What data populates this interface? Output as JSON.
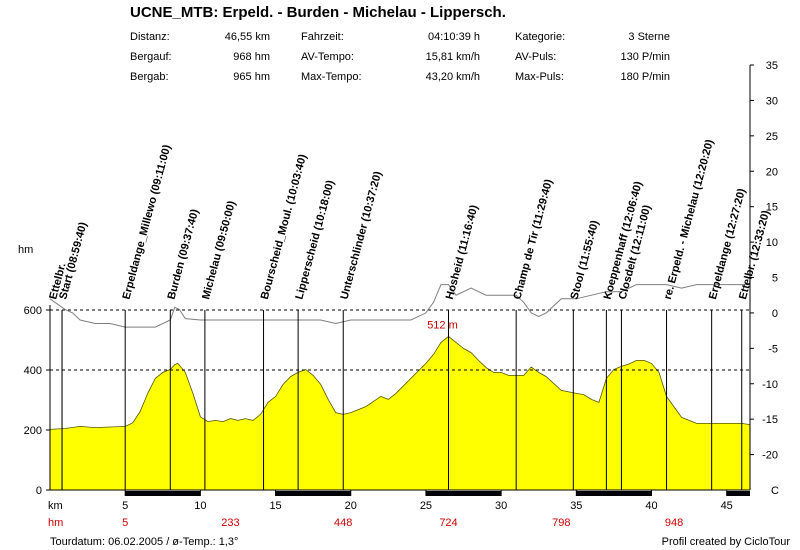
{
  "header": {
    "title": "UCNE_MTB: Erpeld. - Burden - Michelau - Lippersch.",
    "stats": [
      {
        "label": "Distanz:",
        "value": "46,55 km"
      },
      {
        "label": "Bergauf:",
        "value": "968 hm"
      },
      {
        "label": "Bergab:",
        "value": "965 hm"
      },
      {
        "label": "Fahrzeit:",
        "value": "04:10:39 h"
      },
      {
        "label": "AV-Tempo:",
        "value": "15,81 km/h"
      },
      {
        "label": "Max-Tempo:",
        "value": "43,20 km/h"
      },
      {
        "label": "Kategorie:",
        "value": "3 Sterne"
      },
      {
        "label": "AV-Puls:",
        "value": "130 P/min"
      },
      {
        "label": "Max-Puls:",
        "value": "180 P/min"
      }
    ]
  },
  "footer": {
    "left": "Tourdatum: 06.02.2005  /  ø-Temp.: 1,3°",
    "right": "Profil created by CicloTour"
  },
  "colors": {
    "fill": "#ffff00",
    "outline": "#000000",
    "accent_red": "#cc0000",
    "temp_line": "#7f7f7f"
  },
  "chart_data": {
    "type": "area",
    "xlabel": "km",
    "ylabel": "hm",
    "xlim": [
      0,
      46.55
    ],
    "ylim": [
      0,
      600
    ],
    "x_ticks": [
      5,
      10,
      15,
      20,
      25,
      30,
      35,
      40,
      45
    ],
    "y_ticks": [
      0,
      200,
      400,
      600
    ],
    "y2_label": "C",
    "y2_ticks": [
      35,
      30,
      25,
      20,
      15,
      10,
      5,
      0,
      -5,
      -10,
      -15,
      -20
    ],
    "y2_lim": [
      -25,
      35
    ],
    "cum_climb_label": "hm",
    "cum_climb": [
      {
        "km": 5,
        "hm": "5"
      },
      {
        "km": 12,
        "hm": "233"
      },
      {
        "km": 19.5,
        "hm": "448"
      },
      {
        "km": 26.5,
        "hm": "724"
      },
      {
        "km": 34,
        "hm": "798"
      },
      {
        "km": 41.5,
        "hm": "948"
      }
    ],
    "max_label": {
      "text": "512 m",
      "km": 26.1,
      "hm": 512
    },
    "elevation": {
      "km": [
        0,
        1,
        2,
        2.5,
        3,
        4,
        5,
        5.5,
        6,
        6.5,
        7,
        7.5,
        8,
        8.3,
        8.5,
        9,
        9.5,
        10,
        10.5,
        11,
        11.5,
        12,
        12.5,
        13,
        13.5,
        14,
        14.5,
        15,
        15.5,
        16,
        16.5,
        17,
        17.5,
        18,
        18.5,
        19,
        19.5,
        20,
        21,
        22,
        22.5,
        23,
        24,
        25,
        25.5,
        26,
        26.5,
        27,
        27.5,
        28,
        28.5,
        29,
        29.5,
        30,
        30.5,
        31,
        31.5,
        32,
        32.5,
        33,
        34,
        35,
        35.5,
        36,
        36.5,
        37,
        37.5,
        38,
        38.5,
        39,
        39.5,
        40,
        40.5,
        41,
        42,
        43,
        44,
        45,
        46,
        46.55
      ],
      "hm": [
        202,
        205,
        212,
        210,
        208,
        210,
        212,
        224,
        262,
        322,
        372,
        392,
        402,
        418,
        422,
        392,
        322,
        244,
        228,
        232,
        228,
        238,
        232,
        238,
        232,
        252,
        292,
        312,
        352,
        378,
        392,
        402,
        382,
        352,
        302,
        258,
        252,
        258,
        278,
        312,
        302,
        322,
        372,
        422,
        452,
        492,
        512,
        492,
        472,
        458,
        432,
        408,
        392,
        392,
        382,
        382,
        382,
        410,
        392,
        378,
        332,
        322,
        318,
        302,
        292,
        372,
        402,
        412,
        420,
        432,
        432,
        422,
        392,
        312,
        242,
        222,
        222,
        222,
        222,
        218
      ]
    },
    "temperature": {
      "km": [
        0,
        1,
        1.5,
        2,
        3,
        4,
        5,
        6,
        7,
        8,
        8.3,
        8.6,
        9,
        10,
        11,
        12,
        13,
        14,
        15,
        16,
        17,
        18,
        19,
        20,
        21,
        22,
        23,
        24,
        25,
        25.5,
        26,
        26.5,
        27,
        28,
        28.5,
        29,
        30,
        31,
        31.5,
        32,
        32.5,
        33,
        34,
        35,
        36,
        37,
        38,
        39,
        40,
        41,
        42,
        43,
        44,
        45,
        46,
        46.55
      ],
      "c": [
        2,
        0.5,
        0,
        -1,
        -1.5,
        -1.5,
        -2,
        -2,
        -2,
        -1,
        0.8,
        0.5,
        -0.8,
        -1,
        -1,
        -1,
        -1,
        -1,
        -1,
        -1,
        -1,
        -1,
        -1.5,
        -1,
        -1,
        -1,
        -1,
        -1,
        0,
        1.5,
        4,
        4,
        2.5,
        3.5,
        3,
        2.5,
        2.5,
        2.5,
        1.5,
        0,
        -0.5,
        0,
        2,
        2,
        2.5,
        3,
        3,
        4,
        4,
        4,
        3.5,
        4,
        4,
        4,
        4,
        4
      ]
    },
    "waypoints": [
      {
        "km": 0.8,
        "label": "Ettelbr."
      },
      {
        "km": 0.8,
        "label": "Start (08:59:40)"
      },
      {
        "km": 5,
        "label": "Erpeldange_Millewo (09:11:00)"
      },
      {
        "km": 8,
        "label": "Burden (09:37:40)"
      },
      {
        "km": 10.3,
        "label": "Michelau (09:50:00)"
      },
      {
        "km": 14.2,
        "label": "Bourscheid_Moul. (10:03:40)"
      },
      {
        "km": 16.5,
        "label": "Lipperscheid (10:18:00)"
      },
      {
        "km": 19.5,
        "label": "Unterschlinder (10:37:20)"
      },
      {
        "km": 26.5,
        "label": "Hosheid (11:16:40)"
      },
      {
        "km": 31,
        "label": "Champ de Tir (11:29:40)"
      },
      {
        "km": 34.8,
        "label": "Stool (11:55:40)"
      },
      {
        "km": 37,
        "label": "Koeppenhaff (12:06:40)"
      },
      {
        "km": 38,
        "label": "Closdelt (12:11:00)"
      },
      {
        "km": 41,
        "label": "re. Erpeld. - Michelau (12:20:20)"
      },
      {
        "km": 44,
        "label": "Erpeldange (12:27:20)"
      },
      {
        "km": 46,
        "label": "Ettelbr. (12:33:20)"
      }
    ]
  }
}
